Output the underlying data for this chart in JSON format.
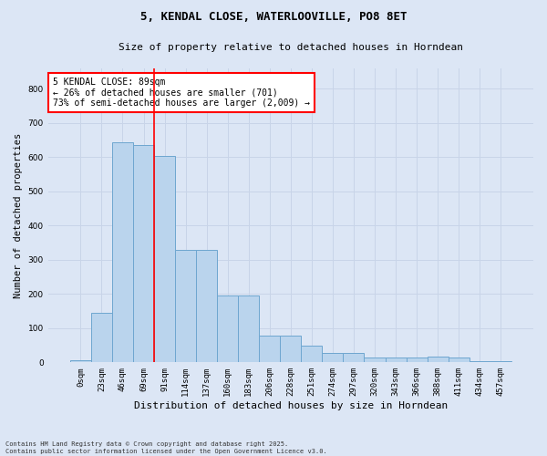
{
  "title": "5, KENDAL CLOSE, WATERLOOVILLE, PO8 8ET",
  "subtitle": "Size of property relative to detached houses in Horndean",
  "xlabel": "Distribution of detached houses by size in Horndean",
  "ylabel": "Number of detached properties",
  "footnote": "Contains HM Land Registry data © Crown copyright and database right 2025.\nContains public sector information licensed under the Open Government Licence v3.0.",
  "bar_labels": [
    "0sqm",
    "23sqm",
    "46sqm",
    "69sqm",
    "91sqm",
    "114sqm",
    "137sqm",
    "160sqm",
    "183sqm",
    "206sqm",
    "228sqm",
    "251sqm",
    "274sqm",
    "297sqm",
    "320sqm",
    "343sqm",
    "366sqm",
    "388sqm",
    "411sqm",
    "434sqm",
    "457sqm"
  ],
  "bar_values": [
    5,
    145,
    645,
    635,
    605,
    330,
    330,
    195,
    195,
    78,
    78,
    48,
    28,
    28,
    13,
    13,
    13,
    17,
    13,
    4,
    4
  ],
  "bar_color": "#bad4ed",
  "bar_edge_color": "#6ea6d0",
  "grid_color": "#c8d4e8",
  "background_color": "#dce6f5",
  "vline_color": "red",
  "vline_position": 3.5,
  "annotation_text": "5 KENDAL CLOSE: 89sqm\n← 26% of detached houses are smaller (701)\n73% of semi-detached houses are larger (2,009) →",
  "annotation_box_color": "white",
  "annotation_box_edge": "red",
  "ylim": [
    0,
    860
  ],
  "yticks": [
    0,
    100,
    200,
    300,
    400,
    500,
    600,
    700,
    800
  ],
  "title_fontsize": 9,
  "subtitle_fontsize": 8,
  "ylabel_fontsize": 7.5,
  "xlabel_fontsize": 8,
  "tick_fontsize": 6.5,
  "annot_fontsize": 7,
  "footnote_fontsize": 5
}
